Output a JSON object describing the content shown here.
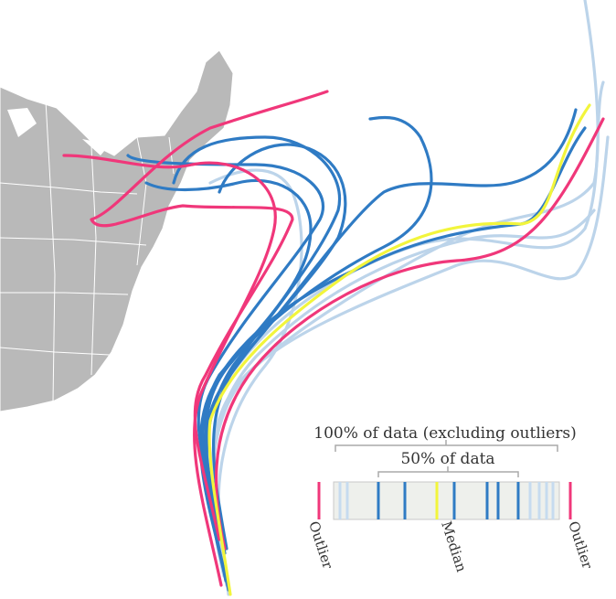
{
  "legend": {
    "outer_label": "100% of data (excluding outliers)",
    "inner_label": "50% of data",
    "labels": [
      "Outlier",
      "Median",
      "Outlier"
    ]
  }
}
